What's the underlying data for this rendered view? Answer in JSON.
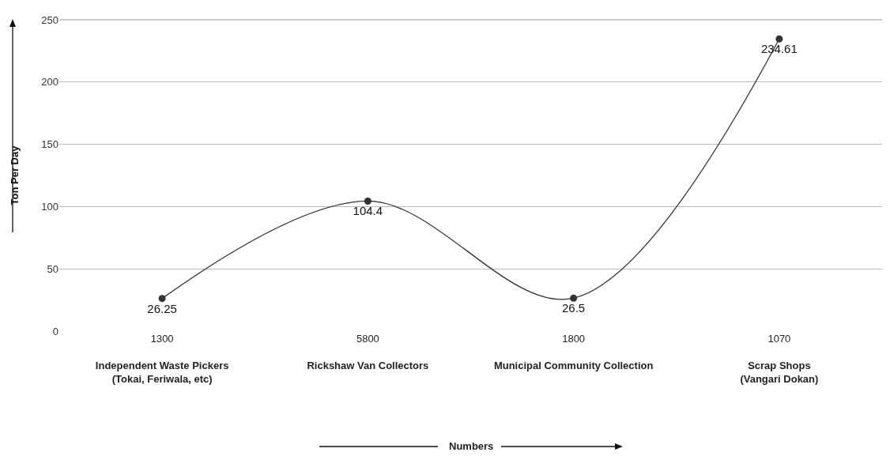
{
  "chart_data": {
    "type": "line",
    "annotations": [
      "Numbers"
    ],
    "ylabel": "Ton Per Day",
    "categories": [
      "1300\nIndependent Waste Pickers\n(Tokai, Feriwala, etc)",
      "5800\nRickshaw Van Collectors",
      "1800\nMunicipal Community Collection",
      "1070\nScrap Shops\n(Vangari Dokan)"
    ],
    "series": [
      {
        "color": "#333333",
        "values": [
          26.25,
          104.4,
          26.5,
          234.61
        ]
      }
    ],
    "ylim": [
      0,
      250
    ],
    "yticks": [
      0,
      50,
      100,
      150,
      200,
      250
    ],
    "grid": "y",
    "marker": "circle",
    "line_style": "solid",
    "data_labels": true
  }
}
